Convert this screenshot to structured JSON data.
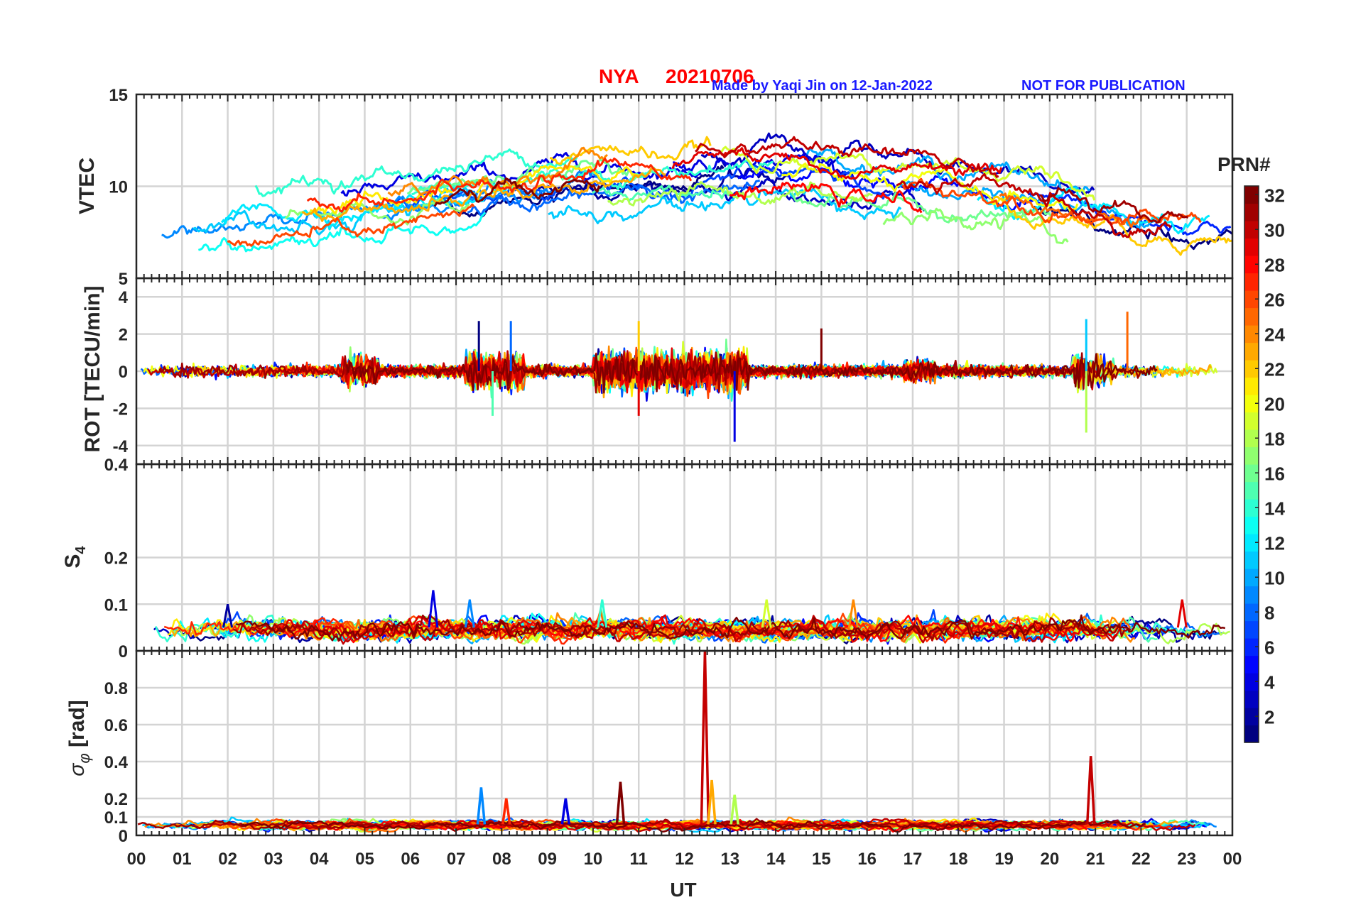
{
  "title": {
    "station": "NYA",
    "date": "20210706",
    "credit": "Made by Yaqi Jin on 12-Jan-2022",
    "notice": "NOT FOR PUBLICATION"
  },
  "colorbar": {
    "label": "PRN#",
    "min": 1,
    "max": 32,
    "ticks": [
      "2",
      "4",
      "6",
      "8",
      "10",
      "12",
      "14",
      "16",
      "18",
      "20",
      "22",
      "24",
      "26",
      "28",
      "30",
      "32"
    ],
    "colormap": "jet"
  },
  "chart_data": [
    {
      "id": "vtec",
      "type": "line",
      "ylabel": "VTEC",
      "xlabel": "",
      "ylim": [
        5,
        15
      ],
      "yticks": [
        "5",
        "10",
        "15"
      ],
      "grid": true,
      "series_count": 32,
      "baseline": {
        "hours": [
          0,
          2,
          4,
          6,
          8,
          10,
          12,
          14,
          15,
          16,
          18,
          20,
          21,
          22,
          24
        ],
        "values": [
          7.2,
          8.0,
          8.5,
          8.8,
          9.6,
          10.2,
          10.2,
          10.6,
          10.4,
          10.0,
          9.6,
          9.0,
          8.5,
          7.8,
          7.8
        ]
      }
    },
    {
      "id": "rot",
      "type": "line",
      "ylabel": "ROT [TECU/min]",
      "ylim": [
        -5,
        5
      ],
      "yticks": [
        "-4",
        "-2",
        "0",
        "2",
        "4"
      ],
      "grid": true,
      "series_count": 32,
      "spikes": [
        {
          "hour": 7.5,
          "value": 2.7
        },
        {
          "hour": 8.2,
          "value": 2.7
        },
        {
          "hour": 7.8,
          "value": -2.4
        },
        {
          "hour": 11.0,
          "value": 2.7
        },
        {
          "hour": 11.0,
          "value": -2.4
        },
        {
          "hour": 13.1,
          "value": -3.8
        },
        {
          "hour": 20.8,
          "value": 2.8
        },
        {
          "hour": 20.8,
          "value": -3.3
        },
        {
          "hour": 21.7,
          "value": 3.2
        },
        {
          "hour": 15.0,
          "value": 2.3
        }
      ]
    },
    {
      "id": "s4",
      "type": "line",
      "ylabel": "S4",
      "ylim": [
        0,
        0.4
      ],
      "yticks": [
        "0",
        "0.1",
        "0.2",
        "0.4"
      ],
      "grid": true,
      "series_count": 32,
      "typical_range": [
        0.02,
        0.07
      ],
      "peaks": [
        {
          "hour": 6.5,
          "value": 0.13
        },
        {
          "hour": 7.3,
          "value": 0.11
        },
        {
          "hour": 10.2,
          "value": 0.11
        },
        {
          "hour": 13.8,
          "value": 0.11
        },
        {
          "hour": 15.7,
          "value": 0.11
        },
        {
          "hour": 22.9,
          "value": 0.11
        },
        {
          "hour": 2.0,
          "value": 0.1
        }
      ]
    },
    {
      "id": "sigma_phi",
      "type": "line",
      "ylabel": "σ_φ [rad]",
      "ylim": [
        0,
        1
      ],
      "yticks": [
        "0",
        "0.1",
        "0.2",
        "0.4",
        "0.6",
        "0.8"
      ],
      "grid": true,
      "series_count": 32,
      "typical_range": [
        0.03,
        0.08
      ],
      "peaks": [
        {
          "hour": 12.45,
          "value": 1.0
        },
        {
          "hour": 20.9,
          "value": 0.43
        },
        {
          "hour": 12.6,
          "value": 0.3
        },
        {
          "hour": 10.6,
          "value": 0.29
        },
        {
          "hour": 7.55,
          "value": 0.26
        },
        {
          "hour": 13.1,
          "value": 0.22
        },
        {
          "hour": 8.1,
          "value": 0.2
        },
        {
          "hour": 9.4,
          "value": 0.2
        }
      ]
    }
  ],
  "xaxis": {
    "label": "UT",
    "range_hours": [
      0,
      24
    ],
    "ticks": [
      "00",
      "01",
      "02",
      "03",
      "04",
      "05",
      "06",
      "07",
      "08",
      "09",
      "10",
      "11",
      "12",
      "13",
      "14",
      "15",
      "16",
      "17",
      "18",
      "19",
      "20",
      "21",
      "22",
      "23",
      "00"
    ]
  }
}
